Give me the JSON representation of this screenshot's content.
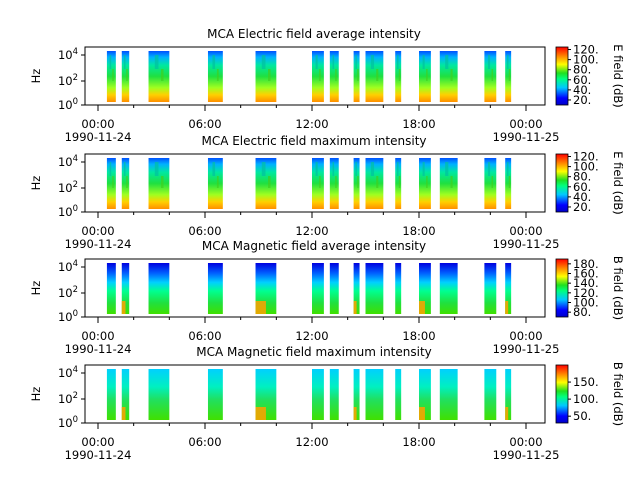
{
  "figure": {
    "x_ticks": [
      "00:00",
      "06:00",
      "12:00",
      "18:00",
      "00:00"
    ],
    "date_start": "1990-11-24",
    "date_end": "1990-11-25"
  },
  "chart_data": [
    {
      "type": "heatmap",
      "title": "MCA  Electric field average intensity",
      "ylabel": "Hz",
      "y_scale": "log",
      "y_ticks": [
        "10^0",
        "10^2",
        "10^4"
      ],
      "x_range": [
        "1990-11-24 00:00",
        "1990-11-25 00:00"
      ],
      "colorbar_label": "E field (dB)",
      "colorbar_ticks": [
        20,
        40,
        60,
        80,
        100,
        120
      ],
      "colorbar_range": [
        10,
        125
      ],
      "data_intervals": [
        [
          "00:30",
          "01:00"
        ],
        [
          "01:20",
          "01:45"
        ],
        [
          "02:50",
          "04:00"
        ],
        [
          "06:10",
          "07:00"
        ],
        [
          "08:50",
          "10:00"
        ],
        [
          "12:00",
          "12:40"
        ],
        [
          "13:00",
          "13:30"
        ],
        [
          "14:20",
          "14:40"
        ],
        [
          "15:00",
          "16:00"
        ],
        [
          "16:40",
          "17:00"
        ],
        [
          "18:00",
          "18:40"
        ],
        [
          "19:10",
          "20:10"
        ],
        [
          "21:40",
          "22:20"
        ],
        [
          "22:50",
          "23:10"
        ]
      ]
    },
    {
      "type": "heatmap",
      "title": "MCA  Electric field maximum intensity",
      "ylabel": "Hz",
      "y_scale": "log",
      "y_ticks": [
        "10^0",
        "10^2",
        "10^4"
      ],
      "x_range": [
        "1990-11-24 00:00",
        "1990-11-25 00:00"
      ],
      "colorbar_label": "E field (dB)",
      "colorbar_ticks": [
        20,
        40,
        60,
        80,
        100,
        120
      ],
      "colorbar_range": [
        10,
        125
      ],
      "data_intervals": [
        [
          "00:30",
          "01:00"
        ],
        [
          "01:20",
          "01:45"
        ],
        [
          "02:50",
          "04:00"
        ],
        [
          "06:10",
          "07:00"
        ],
        [
          "08:50",
          "10:00"
        ],
        [
          "12:00",
          "12:40"
        ],
        [
          "13:00",
          "13:30"
        ],
        [
          "14:20",
          "14:40"
        ],
        [
          "15:00",
          "16:00"
        ],
        [
          "16:40",
          "17:00"
        ],
        [
          "18:00",
          "18:40"
        ],
        [
          "19:10",
          "20:10"
        ],
        [
          "21:40",
          "22:20"
        ],
        [
          "22:50",
          "23:10"
        ]
      ]
    },
    {
      "type": "heatmap",
      "title": "MCA  Magnetic field average intensity",
      "ylabel": "Hz",
      "y_scale": "log",
      "y_ticks": [
        "10^0",
        "10^2",
        "10^4"
      ],
      "x_range": [
        "1990-11-24 00:00",
        "1990-11-25 00:00"
      ],
      "colorbar_label": "B field (dB)",
      "colorbar_ticks": [
        80,
        100,
        120,
        140,
        160,
        180
      ],
      "colorbar_range": [
        70,
        190
      ],
      "data_intervals": [
        [
          "00:30",
          "01:00"
        ],
        [
          "01:20",
          "01:45"
        ],
        [
          "02:50",
          "04:00"
        ],
        [
          "06:10",
          "07:00"
        ],
        [
          "08:50",
          "10:00"
        ],
        [
          "12:00",
          "12:40"
        ],
        [
          "13:00",
          "13:30"
        ],
        [
          "14:20",
          "14:40"
        ],
        [
          "15:00",
          "16:00"
        ],
        [
          "16:40",
          "17:00"
        ],
        [
          "18:00",
          "18:40"
        ],
        [
          "19:10",
          "20:10"
        ],
        [
          "21:40",
          "22:20"
        ],
        [
          "22:50",
          "23:10"
        ]
      ]
    },
    {
      "type": "heatmap",
      "title": "MCA  Magnetic field maximum intensity",
      "ylabel": "Hz",
      "y_scale": "log",
      "y_ticks": [
        "10^0",
        "10^2",
        "10^4"
      ],
      "x_range": [
        "1990-11-24 00:00",
        "1990-11-25 00:00"
      ],
      "colorbar_label": "B field (dB)",
      "colorbar_ticks": [
        50,
        100,
        150
      ],
      "colorbar_range": [
        30,
        200
      ],
      "data_intervals": [
        [
          "00:30",
          "01:00"
        ],
        [
          "01:20",
          "01:45"
        ],
        [
          "02:50",
          "04:00"
        ],
        [
          "06:10",
          "07:00"
        ],
        [
          "08:50",
          "10:00"
        ],
        [
          "12:00",
          "12:40"
        ],
        [
          "13:00",
          "13:30"
        ],
        [
          "14:20",
          "14:40"
        ],
        [
          "15:00",
          "16:00"
        ],
        [
          "16:40",
          "17:00"
        ],
        [
          "18:00",
          "18:40"
        ],
        [
          "19:10",
          "20:10"
        ],
        [
          "21:40",
          "22:20"
        ],
        [
          "22:50",
          "23:10"
        ]
      ]
    }
  ]
}
